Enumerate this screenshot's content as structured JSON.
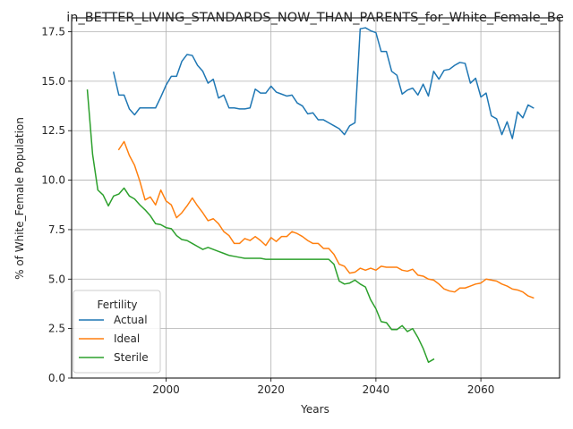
{
  "chart_data": {
    "type": "line",
    "title": "in_BETTER_LIVING_STANDARDS_NOW_THAN_PARENTS_for_White_Female_Be",
    "xlabel": "Years",
    "ylabel": "% of White_Female Population",
    "xlim": [
      1982,
      2075
    ],
    "ylim": [
      0,
      18.2
    ],
    "xticks": [
      2000,
      2020,
      2040,
      2060
    ],
    "yticks": [
      0.0,
      2.5,
      5.0,
      7.5,
      10.0,
      12.5,
      15.0,
      17.5
    ],
    "grid": true,
    "legend": {
      "title": "Fertility",
      "placement": "lower-left"
    },
    "series": [
      {
        "name": "Actual",
        "color": "#1f77b4",
        "x": [
          1990,
          1991,
          1992,
          1993,
          1994,
          1995,
          1996,
          1997,
          1998,
          1999,
          2000,
          2001,
          2002,
          2003,
          2004,
          2005,
          2006,
          2007,
          2008,
          2009,
          2010,
          2011,
          2012,
          2013,
          2014,
          2015,
          2016,
          2017,
          2018,
          2019,
          2020,
          2021,
          2022,
          2023,
          2024,
          2025,
          2026,
          2027,
          2028,
          2029,
          2030,
          2031,
          2032,
          2033,
          2034,
          2035,
          2036,
          2037,
          2038,
          2039,
          2040,
          2041,
          2042,
          2043,
          2044,
          2045,
          2046,
          2047,
          2048,
          2049,
          2050,
          2051,
          2052,
          2053,
          2054,
          2055,
          2056,
          2057,
          2058,
          2059,
          2060,
          2061,
          2062,
          2063,
          2064,
          2065,
          2066,
          2067,
          2068,
          2069,
          2070
        ],
        "values": [
          15.45,
          14.3,
          14.3,
          13.6,
          13.3,
          13.65,
          13.65,
          13.65,
          13.65,
          14.2,
          14.8,
          15.25,
          15.25,
          16.0,
          16.35,
          16.3,
          15.8,
          15.5,
          14.9,
          15.1,
          14.15,
          14.3,
          13.65,
          13.65,
          13.6,
          13.6,
          13.65,
          14.6,
          14.4,
          14.4,
          14.75,
          14.45,
          14.35,
          14.25,
          14.3,
          13.9,
          13.75,
          13.35,
          13.4,
          13.05,
          13.05,
          12.9,
          12.75,
          12.6,
          12.3,
          12.75,
          12.9,
          17.65,
          17.7,
          17.55,
          17.45,
          16.5,
          16.5,
          15.5,
          15.3,
          14.35,
          14.55,
          14.65,
          14.3,
          14.85,
          14.25,
          15.5,
          15.1,
          15.55,
          15.6,
          15.8,
          15.95,
          15.9,
          14.9,
          15.15,
          14.2,
          14.4,
          13.25,
          13.1,
          12.3,
          12.95,
          12.1,
          13.45,
          13.15,
          13.8,
          13.65
        ]
      },
      {
        "name": "Ideal",
        "color": "#ff7f0e",
        "x": [
          1991,
          1992,
          1993,
          1994,
          1995,
          1996,
          1997,
          1998,
          1999,
          2000,
          2001,
          2002,
          2003,
          2004,
          2005,
          2006,
          2007,
          2008,
          2009,
          2010,
          2011,
          2012,
          2013,
          2014,
          2015,
          2016,
          2017,
          2018,
          2019,
          2020,
          2021,
          2022,
          2023,
          2024,
          2025,
          2026,
          2027,
          2028,
          2029,
          2030,
          2031,
          2032,
          2033,
          2034,
          2035,
          2036,
          2037,
          2038,
          2039,
          2040,
          2041,
          2042,
          2043,
          2044,
          2045,
          2046,
          2047,
          2048,
          2049,
          2050,
          2051,
          2052,
          2053,
          2054,
          2055,
          2056,
          2057,
          2058,
          2059,
          2060,
          2061,
          2062,
          2063,
          2064,
          2065,
          2066,
          2067,
          2068,
          2069,
          2070
        ],
        "values": [
          11.55,
          11.95,
          11.25,
          10.75,
          9.95,
          9.0,
          9.15,
          8.75,
          9.5,
          8.95,
          8.75,
          8.1,
          8.35,
          8.7,
          9.1,
          8.7,
          8.35,
          7.95,
          8.05,
          7.8,
          7.4,
          7.2,
          6.8,
          6.8,
          7.05,
          6.95,
          7.15,
          6.95,
          6.7,
          7.1,
          6.9,
          7.15,
          7.15,
          7.4,
          7.3,
          7.15,
          6.95,
          6.8,
          6.8,
          6.55,
          6.55,
          6.25,
          5.75,
          5.65,
          5.3,
          5.35,
          5.55,
          5.45,
          5.55,
          5.45,
          5.65,
          5.6,
          5.6,
          5.6,
          5.45,
          5.4,
          5.5,
          5.2,
          5.15,
          5.0,
          4.95,
          4.75,
          4.5,
          4.4,
          4.35,
          4.55,
          4.55,
          4.65,
          4.75,
          4.8,
          5.0,
          4.95,
          4.9,
          4.75,
          4.65,
          4.5,
          4.45,
          4.35,
          4.15,
          4.05
        ]
      },
      {
        "name": "Sterile",
        "color": "#2ca02c",
        "x": [
          1985,
          1986,
          1987,
          1988,
          1989,
          1990,
          1991,
          1992,
          1993,
          1994,
          1995,
          1996,
          1997,
          1998,
          1999,
          2000,
          2001,
          2002,
          2003,
          2004,
          2005,
          2006,
          2007,
          2008,
          2009,
          2010,
          2011,
          2012,
          2013,
          2014,
          2015,
          2016,
          2017,
          2018,
          2019,
          2020,
          2021,
          2022,
          2023,
          2024,
          2025,
          2026,
          2027,
          2028,
          2029,
          2030,
          2031,
          2032,
          2033,
          2034,
          2035,
          2036,
          2037,
          2038,
          2039,
          2040,
          2041,
          2042,
          2043,
          2044,
          2045,
          2046,
          2047,
          2048,
          2049,
          2050,
          2051
        ],
        "values": [
          14.55,
          11.3,
          9.5,
          9.25,
          8.7,
          9.2,
          9.3,
          9.6,
          9.2,
          9.05,
          8.75,
          8.5,
          8.2,
          7.8,
          7.75,
          7.6,
          7.55,
          7.2,
          7.0,
          6.95,
          6.8,
          6.65,
          6.5,
          6.6,
          6.5,
          6.4,
          6.3,
          6.2,
          6.15,
          6.1,
          6.05,
          6.05,
          6.05,
          6.05,
          6.0,
          6.0,
          6.0,
          6.0,
          6.0,
          6.0,
          6.0,
          6.0,
          6.0,
          6.0,
          6.0,
          6.0,
          6.0,
          5.75,
          4.9,
          4.75,
          4.8,
          4.95,
          4.75,
          4.6,
          3.95,
          3.5,
          2.85,
          2.8,
          2.45,
          2.45,
          2.65,
          2.35,
          2.5,
          2.05,
          1.5,
          0.8,
          0.95
        ]
      }
    ]
  }
}
